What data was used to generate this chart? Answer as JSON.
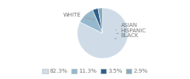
{
  "labels": [
    "WHITE",
    "HISPANIC",
    "ASIAN",
    "BLACK"
  ],
  "values": [
    82.3,
    11.3,
    3.5,
    2.9
  ],
  "colors": [
    "#cfdce8",
    "#96b8cc",
    "#2e5f8a",
    "#8aabbf"
  ],
  "legend_labels": [
    "82.3%",
    "11.3%",
    "3.5%",
    "2.9%"
  ],
  "legend_colors": [
    "#cfdce8",
    "#96b8cc",
    "#2e5f8a",
    "#8aabbf"
  ],
  "label_fontsize": 5.0,
  "legend_fontsize": 5.2,
  "text_color": "#777777"
}
